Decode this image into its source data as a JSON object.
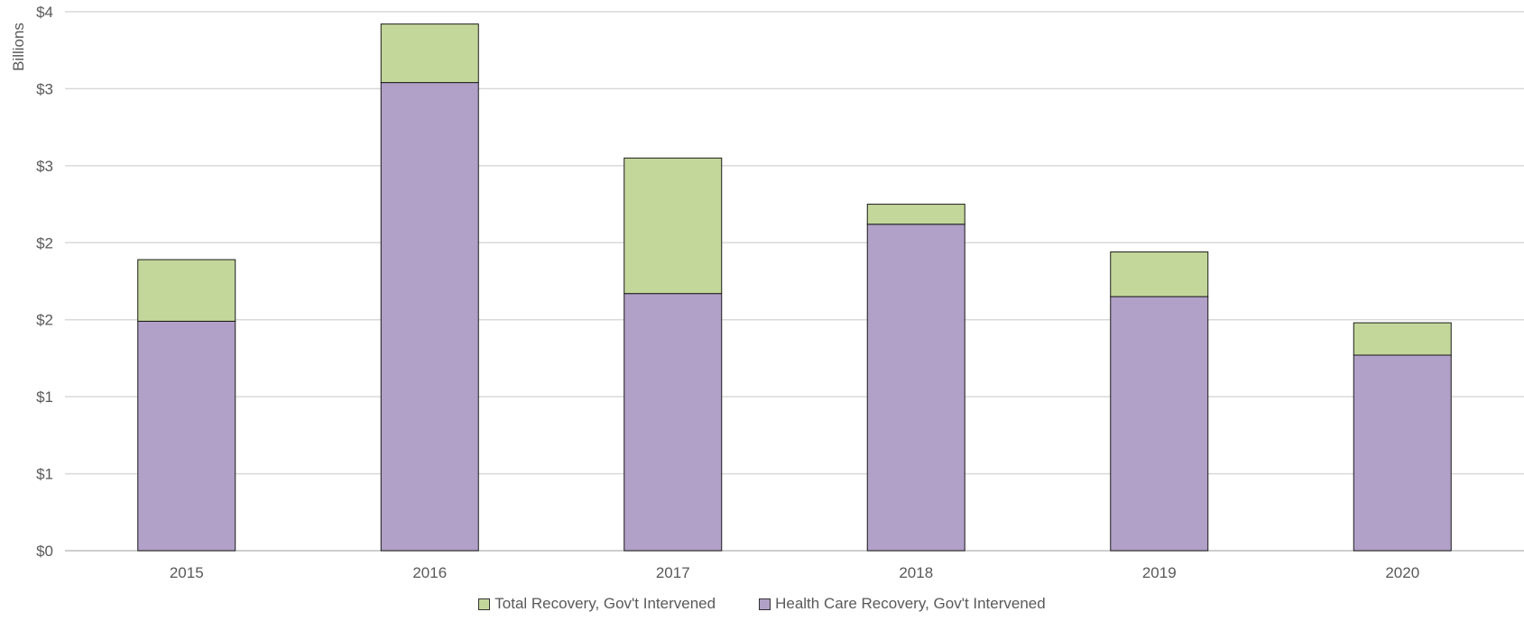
{
  "chart_data": {
    "type": "bar",
    "stacked": true,
    "categories": [
      "2015",
      "2016",
      "2017",
      "2018",
      "2019",
      "2020"
    ],
    "series": [
      {
        "name": "Health Care Recovery, Gov't Intervened",
        "color": "#b1a0c7",
        "values": [
          1.49,
          3.04,
          1.67,
          2.12,
          1.65,
          1.27
        ]
      },
      {
        "name": "Total Recovery, Gov't Intervened",
        "color": "#c4d79b",
        "values": [
          0.4,
          0.38,
          0.88,
          0.13,
          0.29,
          0.21
        ]
      }
    ],
    "ylabel": "Billions",
    "ylim": [
      0,
      3.5
    ],
    "y_ticks": [
      0,
      0.5,
      1,
      1.5,
      2,
      2.5,
      3,
      3.5
    ],
    "y_tick_labels": [
      "$0",
      "$1",
      "$1",
      "$2",
      "$2",
      "$3",
      "$3",
      "$4"
    ],
    "grid": true,
    "legend_position": "bottom"
  }
}
